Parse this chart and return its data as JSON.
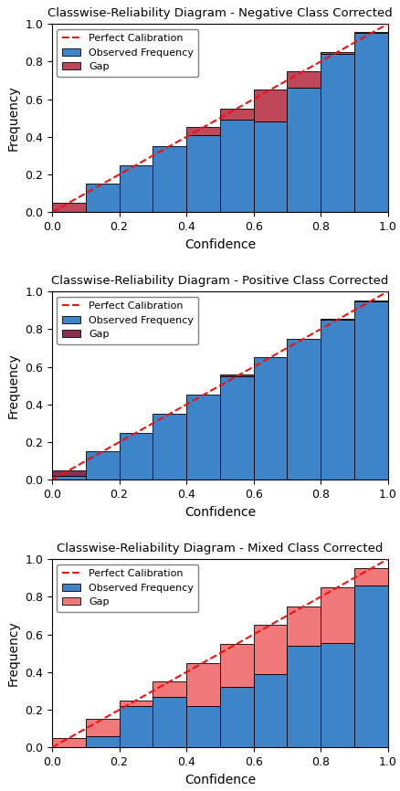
{
  "charts": [
    {
      "title": "Classwise-Reliability Diagram - Negative Class Corrected",
      "bin_edges": [
        0.0,
        0.1,
        0.2,
        0.3,
        0.4,
        0.5,
        0.6,
        0.7,
        0.8,
        0.9,
        1.0
      ],
      "observed": [
        0.0,
        0.15,
        0.25,
        0.35,
        0.41,
        0.49,
        0.48,
        0.66,
        0.84,
        0.955
      ],
      "conf_mid": [
        0.05,
        0.15,
        0.25,
        0.35,
        0.45,
        0.55,
        0.65,
        0.75,
        0.85,
        0.95
      ],
      "gap_color": "#c0475a"
    },
    {
      "title": "Classwise-Reliability Diagram - Positive Class Corrected",
      "bin_edges": [
        0.0,
        0.1,
        0.2,
        0.3,
        0.4,
        0.5,
        0.6,
        0.7,
        0.8,
        0.9,
        1.0
      ],
      "observed": [
        0.02,
        0.15,
        0.25,
        0.35,
        0.45,
        0.56,
        0.65,
        0.75,
        0.855,
        0.945
      ],
      "conf_mid": [
        0.05,
        0.15,
        0.25,
        0.35,
        0.45,
        0.55,
        0.65,
        0.75,
        0.85,
        0.95
      ],
      "gap_color": "#8b3050"
    },
    {
      "title": "Classwise-Reliability Diagram - Mixed Class Corrected",
      "bin_edges": [
        0.0,
        0.1,
        0.2,
        0.3,
        0.4,
        0.5,
        0.6,
        0.7,
        0.8,
        0.9,
        1.0
      ],
      "observed": [
        0.0,
        0.06,
        0.22,
        0.27,
        0.22,
        0.32,
        0.39,
        0.54,
        0.555,
        0.86
      ],
      "conf_mid": [
        0.05,
        0.15,
        0.25,
        0.35,
        0.45,
        0.55,
        0.65,
        0.75,
        0.85,
        0.95
      ],
      "gap_color": "#f07878"
    }
  ],
  "blue_color": "#3d85c8",
  "dashed_color": "#ee1111",
  "xlabel": "Confidence",
  "ylabel": "Frequency",
  "legend_entries": [
    "Perfect Calibration",
    "Observed Frequency",
    "Gap"
  ],
  "ylim": [
    0.0,
    1.0
  ],
  "xlim": [
    0.0,
    1.0
  ],
  "figsize": [
    4.38,
    8.66
  ],
  "dpi": 100
}
